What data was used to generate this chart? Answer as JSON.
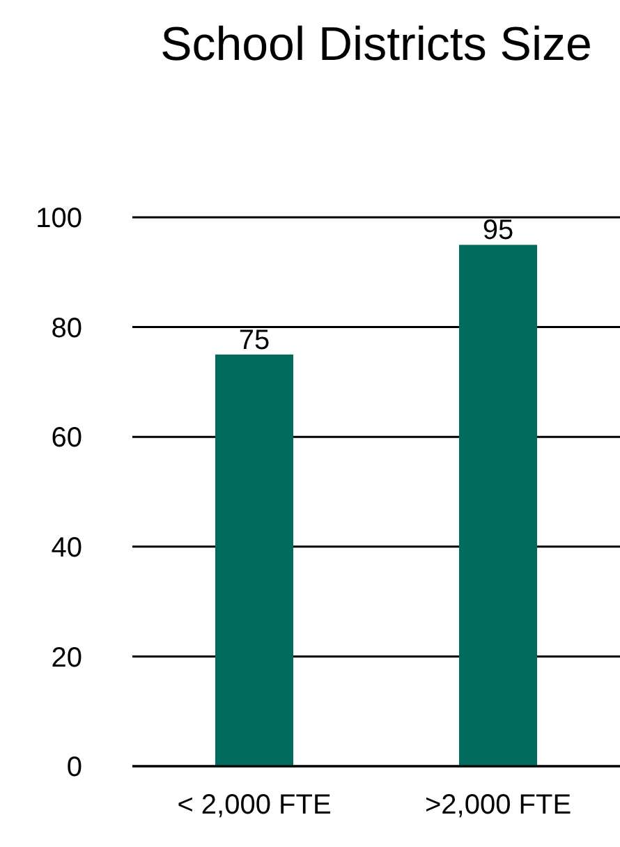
{
  "chart_data": {
    "type": "bar",
    "title": "School Districts Size",
    "categories": [
      "< 2,000 FTE",
      ">2,000 FTE"
    ],
    "values": [
      75,
      95
    ],
    "color": "#006b5e",
    "ylim": [
      0,
      100
    ],
    "yticks": [
      0,
      20,
      40,
      60,
      80,
      100
    ],
    "grid": "y",
    "data_labels": true,
    "legend": false
  }
}
